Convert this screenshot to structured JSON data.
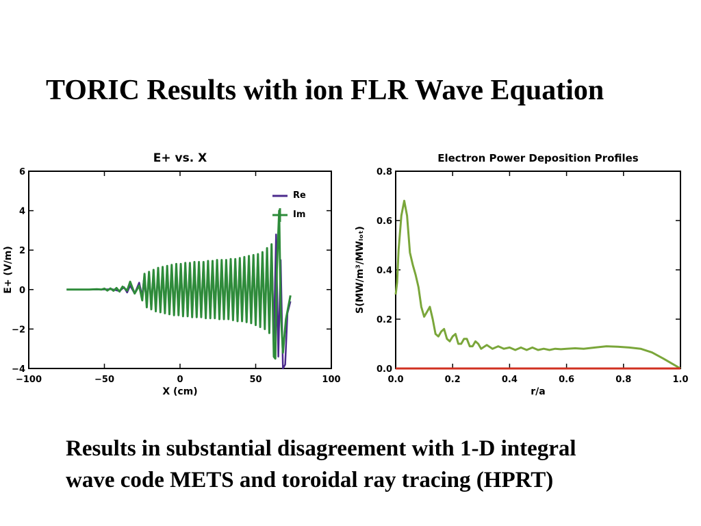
{
  "slide": {
    "title": "TORIC Results with ion FLR Wave Equation",
    "caption_lines": [
      "Results in substantial disagreement with 1-D integral",
      "wave code  METS and toroidal ray tracing (HPRT)"
    ]
  },
  "colors": {
    "re": "#4b2a8c",
    "im": "#2e8b3a",
    "profile": "#7aa63a",
    "baseline": "#d03020",
    "axis": "#000000"
  },
  "chart_data": [
    {
      "type": "line",
      "title": "E+ vs. X",
      "xlabel": "X (cm)",
      "ylabel": "E+ (V/m)",
      "xlim": [
        -100,
        100
      ],
      "ylim": [
        -4,
        6
      ],
      "xticks": [
        -100,
        -50,
        0,
        50,
        100
      ],
      "yticks": [
        -4,
        -2,
        0,
        2,
        4,
        6
      ],
      "xtick_labels": [
        "−100",
        "−50",
        "0",
        "50",
        "100"
      ],
      "ytick_labels": [
        "−4",
        "−2",
        "0",
        "2",
        "4",
        "6"
      ],
      "legend": "top-right",
      "series": [
        {
          "name": "Re",
          "x": [
            -75,
            -68,
            -60,
            -52,
            -45,
            -40,
            -37,
            -35,
            -33,
            -30,
            -27,
            -25,
            -24,
            -22,
            -20.5,
            -19,
            -17.5,
            -16,
            -14.5,
            -13,
            -11.5,
            -10,
            -8.5,
            -7,
            -5.5,
            -4,
            -2.5,
            -1,
            0.5,
            2,
            3.5,
            5,
            6.5,
            8,
            9.5,
            11,
            12.5,
            14,
            15.5,
            17,
            18.5,
            20,
            21.5,
            23,
            24.5,
            26,
            27.5,
            29,
            30.5,
            32,
            33.5,
            35,
            36.5,
            38,
            39.5,
            41,
            42.5,
            44,
            45.5,
            47,
            48.5,
            50,
            51.5,
            53,
            54.5,
            56,
            57.5,
            59,
            60.5,
            62,
            63.5,
            65,
            66.5,
            68,
            69.5,
            71,
            73
          ],
          "y": [
            0,
            0,
            0,
            0,
            0.02,
            -0.08,
            0.12,
            -0.15,
            0.2,
            -0.2,
            0.35,
            -0.35,
            0.45,
            -0.55,
            0.65,
            -0.75,
            0.85,
            -0.9,
            0.95,
            -1.0,
            1.05,
            -1.05,
            1.1,
            -1.1,
            1.15,
            -1.15,
            1.2,
            -1.2,
            1.2,
            -1.25,
            1.25,
            -1.25,
            1.3,
            -1.3,
            1.3,
            -1.3,
            1.3,
            -1.3,
            1.35,
            -1.35,
            1.35,
            -1.35,
            1.35,
            -1.4,
            1.4,
            -1.4,
            1.4,
            -1.4,
            1.45,
            -1.45,
            1.45,
            -1.45,
            1.5,
            -1.5,
            1.5,
            -1.5,
            1.6,
            -1.6,
            1.6,
            -1.6,
            1.7,
            -1.7,
            1.75,
            -1.8,
            1.85,
            -1.9,
            2.0,
            -2.1,
            2.3,
            -2.6,
            2.8,
            -3.4,
            1.5,
            -4.0,
            -3.8,
            -1.2,
            -0.6
          ]
        },
        {
          "name": "Im",
          "x": [
            -75,
            -70,
            -65,
            -60,
            -55,
            -52,
            -50,
            -48,
            -46,
            -44,
            -42,
            -40,
            -38,
            -35,
            -33,
            -30,
            -27,
            -25,
            -23.5,
            -22,
            -20.5,
            -19,
            -17.5,
            -16,
            -14.5,
            -13,
            -11.5,
            -10,
            -8.5,
            -7,
            -5.5,
            -4,
            -2.5,
            -1,
            0.5,
            2,
            3.5,
            5,
            6.5,
            8,
            9.5,
            11,
            12.5,
            14,
            15.5,
            17,
            18.5,
            20,
            21.5,
            23,
            24.5,
            26,
            27.5,
            29,
            30.5,
            32,
            33.5,
            35,
            36.5,
            38,
            39.5,
            41,
            42.5,
            44,
            45.5,
            47,
            48.5,
            50,
            51.5,
            53,
            54.5,
            56,
            57.5,
            59,
            60.5,
            62,
            63,
            64,
            65.5,
            66.5,
            68,
            70,
            73
          ],
          "y": [
            0,
            0,
            0,
            0,
            0.02,
            0,
            0.05,
            -0.05,
            0.06,
            -0.06,
            0.08,
            -0.1,
            0.15,
            -0.05,
            0.4,
            -0.2,
            0.2,
            -0.55,
            0.8,
            -0.9,
            0.9,
            -1.0,
            1.0,
            -1.1,
            1.1,
            -1.15,
            1.15,
            -1.2,
            1.2,
            -1.25,
            1.25,
            -1.3,
            1.3,
            -1.3,
            1.3,
            -1.35,
            1.35,
            -1.35,
            1.35,
            -1.4,
            1.4,
            -1.4,
            1.4,
            -1.4,
            1.4,
            -1.45,
            1.45,
            -1.45,
            1.45,
            -1.45,
            1.5,
            -1.5,
            1.5,
            -1.5,
            1.5,
            -1.5,
            1.55,
            -1.55,
            1.55,
            -1.6,
            1.6,
            -1.6,
            1.65,
            -1.65,
            1.7,
            -1.7,
            1.75,
            -1.8,
            1.8,
            -1.9,
            1.9,
            -2.0,
            2.1,
            -2.2,
            2.3,
            -3.4,
            -3.5,
            1.0,
            4.0,
            -1.0,
            -3.2,
            -1.5,
            -0.3
          ]
        }
      ]
    },
    {
      "type": "line",
      "title": "Electron Power Deposition Profiles",
      "xlabel": "r/a",
      "ylabel": "S(MW/m³/MWₗₒₜ)",
      "xlim": [
        0,
        1
      ],
      "ylim": [
        0,
        0.8
      ],
      "xticks": [
        0,
        0.2,
        0.4,
        0.6,
        0.8,
        1.0
      ],
      "yticks": [
        0,
        0.2,
        0.4,
        0.6,
        0.8
      ],
      "xtick_labels": [
        "0.0",
        "0.2",
        "0.4",
        "0.6",
        "0.8",
        "1.0"
      ],
      "ytick_labels": [
        "0.0",
        "0.2",
        "0.4",
        "0.6",
        "0.8"
      ],
      "series": [
        {
          "x": [
            0,
            0.005,
            0.01,
            0.02,
            0.03,
            0.04,
            0.05,
            0.06,
            0.07,
            0.08,
            0.09,
            0.1,
            0.11,
            0.12,
            0.13,
            0.14,
            0.15,
            0.16,
            0.17,
            0.18,
            0.19,
            0.2,
            0.21,
            0.22,
            0.23,
            0.24,
            0.25,
            0.26,
            0.27,
            0.28,
            0.29,
            0.3,
            0.32,
            0.34,
            0.36,
            0.38,
            0.4,
            0.42,
            0.44,
            0.46,
            0.48,
            0.5,
            0.52,
            0.54,
            0.56,
            0.58,
            0.6,
            0.63,
            0.66,
            0.7,
            0.74,
            0.78,
            0.82,
            0.86,
            0.9,
            0.94,
            0.97,
            1.0
          ],
          "y": [
            0.3,
            0.35,
            0.48,
            0.62,
            0.68,
            0.62,
            0.47,
            0.42,
            0.38,
            0.33,
            0.25,
            0.21,
            0.23,
            0.25,
            0.2,
            0.14,
            0.13,
            0.15,
            0.16,
            0.12,
            0.11,
            0.13,
            0.14,
            0.1,
            0.1,
            0.12,
            0.12,
            0.09,
            0.09,
            0.11,
            0.1,
            0.08,
            0.095,
            0.08,
            0.09,
            0.08,
            0.085,
            0.075,
            0.085,
            0.075,
            0.085,
            0.075,
            0.08,
            0.075,
            0.08,
            0.078,
            0.08,
            0.082,
            0.08,
            0.085,
            0.09,
            0.088,
            0.085,
            0.08,
            0.065,
            0.04,
            0.02,
            0.0
          ]
        },
        {
          "x": [
            0,
            1
          ],
          "y": [
            0,
            0
          ]
        }
      ]
    }
  ]
}
